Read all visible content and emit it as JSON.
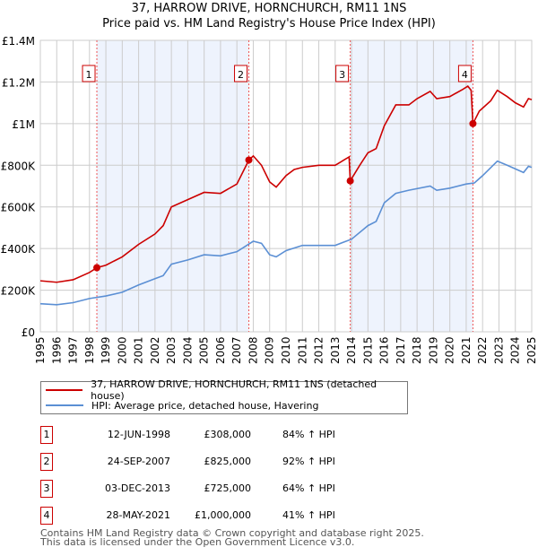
{
  "chart_data": {
    "type": "line",
    "title": "37, HARROW DRIVE, HORNCHURCH, RM11 1NS",
    "subtitle": "Price paid vs. HM Land Registry's House Price Index (HPI)",
    "xlim": [
      1995,
      2025
    ],
    "ylim": [
      0,
      1400000
    ],
    "y_ticks": [
      {
        "v": 0,
        "label": "£0"
      },
      {
        "v": 200000,
        "label": "£200K"
      },
      {
        "v": 400000,
        "label": "£400K"
      },
      {
        "v": 600000,
        "label": "£600K"
      },
      {
        "v": 800000,
        "label": "£800K"
      },
      {
        "v": 1000000,
        "label": "£1M"
      },
      {
        "v": 1200000,
        "label": "£1.2M"
      },
      {
        "v": 1400000,
        "label": "£1.4M"
      }
    ],
    "x_ticks": [
      "1995",
      "1996",
      "1997",
      "1998",
      "1999",
      "2000",
      "2001",
      "2002",
      "2003",
      "2004",
      "2005",
      "2006",
      "2007",
      "2008",
      "2009",
      "2010",
      "2011",
      "2012",
      "2013",
      "2014",
      "2015",
      "2016",
      "2017",
      "2018",
      "2019",
      "2020",
      "2021",
      "2022",
      "2023",
      "2024",
      "2025"
    ],
    "grid": true,
    "series": [
      {
        "name": "37, HARROW DRIVE, HORNCHURCH, RM11 1NS (detached house)",
        "color": "#cc0000",
        "x": [
          1995,
          1996,
          1997,
          1998,
          1998.45,
          1999,
          2000,
          2001,
          2002,
          2002.5,
          2003,
          2004,
          2005,
          2006,
          2007,
          2007.73,
          2008,
          2008.5,
          2009,
          2009.4,
          2010,
          2010.5,
          2011,
          2012,
          2013,
          2013.85,
          2013.92,
          2014.5,
          2015,
          2015.5,
          2016,
          2016.7,
          2017.5,
          2018,
          2018.8,
          2019.2,
          2020,
          2020.8,
          2021.1,
          2021.3,
          2021.41,
          2021.8,
          2022.5,
          2022.9,
          2023.5,
          2024,
          2024.5,
          2024.8,
          2025
        ],
        "y": [
          245000,
          238000,
          250000,
          285000,
          308000,
          320000,
          360000,
          420000,
          470000,
          510000,
          600000,
          635000,
          670000,
          665000,
          710000,
          825000,
          845000,
          800000,
          720000,
          695000,
          750000,
          780000,
          790000,
          800000,
          800000,
          840000,
          725000,
          800000,
          860000,
          880000,
          990000,
          1090000,
          1090000,
          1120000,
          1155000,
          1120000,
          1130000,
          1165000,
          1180000,
          1160000,
          1000000,
          1060000,
          1110000,
          1160000,
          1130000,
          1100000,
          1080000,
          1120000,
          1115000
        ]
      },
      {
        "name": "HPI: Average price, detached house, Havering",
        "color": "#5b8fd4",
        "x": [
          1995,
          1996,
          1997,
          1998,
          1999,
          2000,
          2001,
          2002,
          2002.5,
          2003,
          2004,
          2005,
          2006,
          2007,
          2008,
          2008.5,
          2009,
          2009.4,
          2010,
          2011,
          2012,
          2013,
          2014,
          2015,
          2015.5,
          2016,
          2016.7,
          2017.5,
          2018.8,
          2019.2,
          2020,
          2021,
          2021.5,
          2022,
          2022.9,
          2023.5,
          2024.5,
          2024.8,
          2025
        ],
        "y": [
          135000,
          130000,
          140000,
          160000,
          172000,
          190000,
          225000,
          255000,
          270000,
          325000,
          345000,
          370000,
          365000,
          385000,
          435000,
          425000,
          370000,
          360000,
          390000,
          415000,
          415000,
          415000,
          445000,
          510000,
          530000,
          620000,
          665000,
          680000,
          700000,
          680000,
          690000,
          710000,
          715000,
          750000,
          820000,
          800000,
          765000,
          795000,
          790000
        ]
      }
    ],
    "sales": [
      {
        "n": "1",
        "x": 1998.45,
        "y": 308000,
        "date": "12-JUN-1998",
        "price": "£308,000",
        "hpi": "84% ↑ HPI"
      },
      {
        "n": "2",
        "x": 2007.73,
        "y": 825000,
        "date": "24-SEP-2007",
        "price": "£825,000",
        "hpi": "92% ↑ HPI"
      },
      {
        "n": "3",
        "x": 2013.92,
        "y": 725000,
        "date": "03-DEC-2013",
        "price": "£725,000",
        "hpi": "64% ↑ HPI"
      },
      {
        "n": "4",
        "x": 2021.41,
        "y": 1000000,
        "date": "28-MAY-2021",
        "price": "£1,000,000",
        "hpi": "41% ↑ HPI"
      }
    ],
    "shaded_ranges": [
      [
        1998.45,
        2007.73
      ],
      [
        2013.92,
        2021.41
      ]
    ]
  },
  "footer": {
    "line1": "Contains HM Land Registry data © Crown copyright and database right 2025.",
    "line2": "This data is licensed under the Open Government Licence v3.0."
  }
}
